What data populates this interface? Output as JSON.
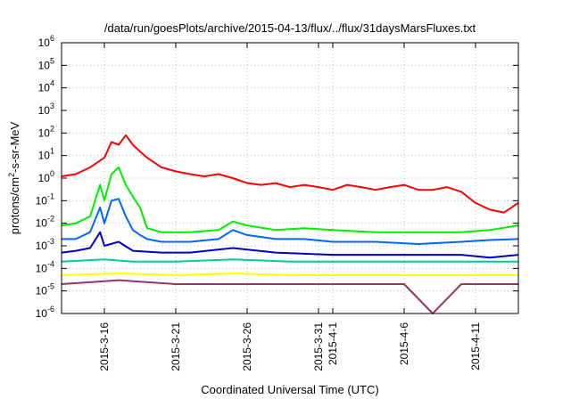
{
  "chart_data": {
    "type": "line",
    "title": "/data/run/goesPlots/archive/2015-04-13/flux/../flux/31daysMarsFluxes.txt",
    "xlabel": "Coordinated Universal Time (UTC)",
    "ylabel": "protons/cm2-s-sr-MeV",
    "ylabel_parts": {
      "pre": "protons/cm",
      "sup": "2",
      "post": "-s-sr-MeV"
    },
    "y_scale": "log",
    "ylim": [
      1e-06,
      1000000.0
    ],
    "xlim": [
      "2015-03-13",
      "2015-04-14"
    ],
    "grid": true,
    "y_ticks": [
      {
        "base": "10",
        "exp": "-6",
        "value": 1e-06
      },
      {
        "base": "10",
        "exp": "-5",
        "value": 1e-05
      },
      {
        "base": "10",
        "exp": "-4",
        "value": 0.0001
      },
      {
        "base": "10",
        "exp": "-3",
        "value": 0.001
      },
      {
        "base": "10",
        "exp": "-2",
        "value": 0.01
      },
      {
        "base": "10",
        "exp": "-1",
        "value": 0.1
      },
      {
        "base": "10",
        "exp": "0",
        "value": 1
      },
      {
        "base": "10",
        "exp": "1",
        "value": 10
      },
      {
        "base": "10",
        "exp": "2",
        "value": 100
      },
      {
        "base": "10",
        "exp": "3",
        "value": 1000
      },
      {
        "base": "10",
        "exp": "4",
        "value": 10000
      },
      {
        "base": "10",
        "exp": "5",
        "value": 100000
      },
      {
        "base": "10",
        "exp": "6",
        "value": 1000000
      }
    ],
    "x_ticks": [
      {
        "label": "2015-3-16",
        "date": "2015-03-16"
      },
      {
        "label": "2015-3-21",
        "date": "2015-03-21"
      },
      {
        "label": "2015-3-26",
        "date": "2015-03-26"
      },
      {
        "label": "2015-3-31",
        "date": "2015-03-31"
      },
      {
        "label": "2015-4-1",
        "date": "2015-04-01"
      },
      {
        "label": "2015-4-6",
        "date": "2015-04-06"
      },
      {
        "label": "2015-4-11",
        "date": "2015-04-11"
      }
    ],
    "series": [
      {
        "color": "#ff0000",
        "x": [
          "2015-03-13",
          "2015-03-14",
          "2015-03-15",
          "2015-03-16",
          "2015-03-16.5",
          "2015-03-17",
          "2015-03-17.5",
          "2015-03-18",
          "2015-03-18.5",
          "2015-03-19",
          "2015-03-20",
          "2015-03-21",
          "2015-03-22",
          "2015-03-23",
          "2015-03-24",
          "2015-03-25",
          "2015-03-26",
          "2015-03-27",
          "2015-03-28",
          "2015-03-29",
          "2015-03-30",
          "2015-03-31",
          "2015-04-01",
          "2015-04-02",
          "2015-04-03",
          "2015-04-04",
          "2015-04-05",
          "2015-04-06",
          "2015-04-07",
          "2015-04-08",
          "2015-04-09",
          "2015-04-10",
          "2015-04-11",
          "2015-04-12",
          "2015-04-13",
          "2015-04-14"
        ],
        "y": [
          1.2,
          1.5,
          3,
          8,
          40,
          30,
          80,
          30,
          15,
          8,
          3,
          2,
          1.5,
          1.2,
          1.5,
          1.0,
          0.6,
          0.5,
          0.6,
          0.4,
          0.5,
          0.4,
          0.3,
          0.5,
          0.4,
          0.3,
          0.4,
          0.5,
          0.3,
          0.3,
          0.4,
          0.25,
          0.08,
          0.04,
          0.03,
          0.08
        ]
      },
      {
        "color": "#00ee00",
        "x": [
          "2015-03-13",
          "2015-03-14",
          "2015-03-15",
          "2015-03-15.7",
          "2015-03-16",
          "2015-03-16.5",
          "2015-03-17",
          "2015-03-17.5",
          "2015-03-18",
          "2015-03-18.5",
          "2015-03-19",
          "2015-03-20",
          "2015-03-22",
          "2015-03-24",
          "2015-03-25",
          "2015-03-26",
          "2015-03-28",
          "2015-03-30",
          "2015-04-01",
          "2015-04-04",
          "2015-04-07",
          "2015-04-10",
          "2015-04-12",
          "2015-04-14"
        ],
        "y": [
          0.008,
          0.01,
          0.02,
          0.5,
          0.1,
          1.5,
          3,
          0.5,
          0.15,
          0.05,
          0.006,
          0.004,
          0.004,
          0.005,
          0.012,
          0.008,
          0.005,
          0.006,
          0.005,
          0.004,
          0.004,
          0.004,
          0.005,
          0.008
        ]
      },
      {
        "color": "#0066ff",
        "x": [
          "2015-03-13",
          "2015-03-14",
          "2015-03-15",
          "2015-03-15.7",
          "2015-03-16",
          "2015-03-16.5",
          "2015-03-17",
          "2015-03-17.5",
          "2015-03-18",
          "2015-03-18.5",
          "2015-03-19",
          "2015-03-20",
          "2015-03-22",
          "2015-03-24",
          "2015-03-25",
          "2015-03-26",
          "2015-03-28",
          "2015-03-30",
          "2015-04-01",
          "2015-04-04",
          "2015-04-07",
          "2015-04-10",
          "2015-04-12",
          "2015-04-14"
        ],
        "y": [
          0.002,
          0.002,
          0.004,
          0.05,
          0.01,
          0.1,
          0.12,
          0.02,
          0.005,
          0.003,
          0.002,
          0.0015,
          0.0015,
          0.002,
          0.005,
          0.003,
          0.002,
          0.002,
          0.0015,
          0.0015,
          0.0012,
          0.0015,
          0.0018,
          0.002
        ]
      },
      {
        "color": "#0000cc",
        "x": [
          "2015-03-13",
          "2015-03-14",
          "2015-03-15",
          "2015-03-15.7",
          "2015-03-16",
          "2015-03-17",
          "2015-03-18",
          "2015-03-20",
          "2015-03-22",
          "2015-03-25",
          "2015-03-28",
          "2015-04-01",
          "2015-04-04",
          "2015-04-07",
          "2015-04-10",
          "2015-04-12",
          "2015-04-14"
        ],
        "y": [
          0.0005,
          0.0006,
          0.0008,
          0.004,
          0.001,
          0.0015,
          0.0006,
          0.0005,
          0.0005,
          0.0008,
          0.0005,
          0.0004,
          0.0004,
          0.0004,
          0.0004,
          0.0003,
          0.0004
        ]
      },
      {
        "color": "#00cc99",
        "x": [
          "2015-03-13",
          "2015-03-16",
          "2015-03-18",
          "2015-03-21",
          "2015-03-25",
          "2015-03-29",
          "2015-04-02",
          "2015-04-06",
          "2015-04-10",
          "2015-04-14"
        ],
        "y": [
          0.0002,
          0.00025,
          0.0002,
          0.0002,
          0.00025,
          0.0002,
          0.0002,
          0.0002,
          0.0002,
          0.0002
        ]
      },
      {
        "color": "#ffff00",
        "x": [
          "2015-03-13",
          "2015-03-17",
          "2015-03-21",
          "2015-03-25",
          "2015-03-29",
          "2015-04-02",
          "2015-04-06",
          "2015-04-10",
          "2015-04-14"
        ],
        "y": [
          5e-05,
          6e-05,
          5e-05,
          6e-05,
          5e-05,
          5e-05,
          5e-05,
          5e-05,
          5e-05
        ]
      },
      {
        "color": "#993366",
        "x": [
          "2015-03-13",
          "2015-03-17",
          "2015-03-21",
          "2015-03-25",
          "2015-03-29",
          "2015-04-02",
          "2015-04-06",
          "2015-04-08",
          "2015-04-10",
          "2015-04-14"
        ],
        "y": [
          2e-05,
          3e-05,
          2e-05,
          2e-05,
          2e-05,
          2e-05,
          2e-05,
          1e-06,
          2e-05,
          2e-05
        ]
      }
    ]
  }
}
